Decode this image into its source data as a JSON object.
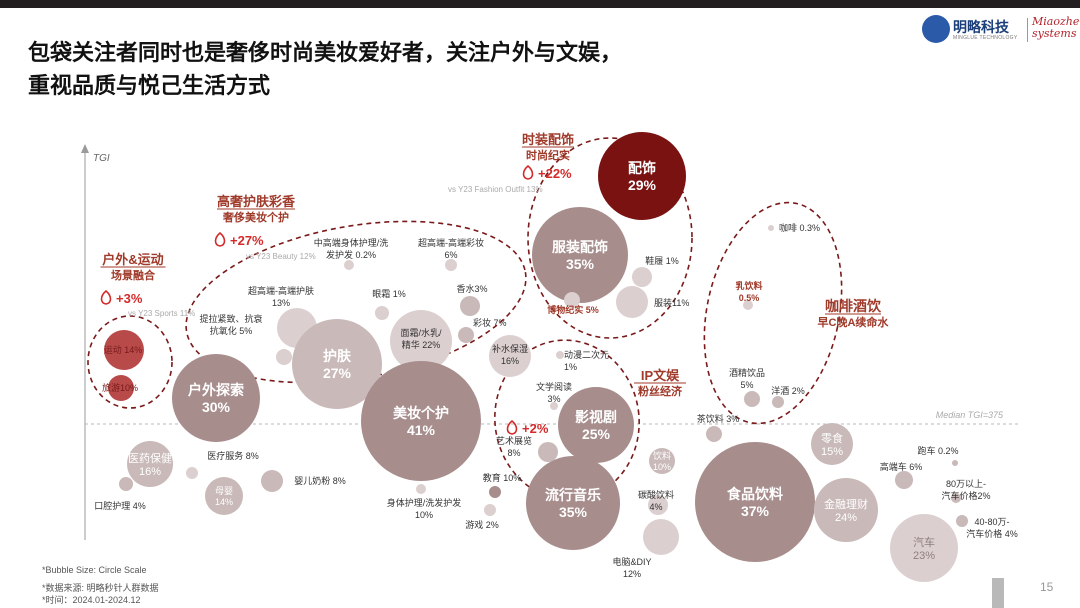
{
  "page": {
    "title_line1": "包袋关注者同时也是奢侈时尚美妆爱好者，关注户外与文娱，",
    "title_line2": "重视品质与悦己生活方式",
    "logo_text": "明略科技",
    "logo_sub": "MINGLUE TECHNOLOGY",
    "logo_brand_line1": "Miaozhen",
    "logo_brand_line2": "systems",
    "footnote_bubble": "*Bubble Size: Circle Scale",
    "footnote_source": "*数据来源: 明略秒针人群数据",
    "footnote_time": "*时间：2024.01-2024.12",
    "page_number": "15"
  },
  "chart_data": {
    "type": "scatter",
    "ylabel": "TGI",
    "median_label": "Median TGI=375",
    "colors": {
      "dark_red": "#7a1212",
      "mid_red": "#b84a4a",
      "pink_red": "#c86b6b",
      "grey_red": "#a88d8d",
      "light_grey": "#c9b9b9",
      "very_light": "#dccfcf",
      "accent_text": "#a03a2a",
      "fire_red": "#d42a2a",
      "dashed": "#7a1a1a"
    },
    "bubbles": [
      {
        "label": "配饰",
        "value": "29%",
        "tone": "dark_red"
      },
      {
        "label": "服装配饰",
        "value": "35%",
        "tone": "grey_red"
      },
      {
        "label": "鞋履 1%",
        "value": "",
        "tone": "very_light"
      },
      {
        "label": "服装11%",
        "value": "",
        "tone": "very_light"
      },
      {
        "label": "博物纪实 5%",
        "value": "",
        "tone": "very_light"
      },
      {
        "label": "咖啡 0.3%",
        "value": "",
        "tone": "very_light"
      },
      {
        "label": "乳饮料",
        "value": "0.5%",
        "tone": "very_light"
      },
      {
        "label": "酒精饮品",
        "value": "5%",
        "tone": "light_grey"
      },
      {
        "label": "洋酒 2%",
        "value": "",
        "tone": "light_grey"
      },
      {
        "label": "中高端身体护理/洗",
        "value": "发护发 0.2%",
        "tone": "very_light"
      },
      {
        "label": "超高端-高端彩妆",
        "value": "6%",
        "tone": "very_light"
      },
      {
        "label": "超高端-高端护肤",
        "value": "13%",
        "tone": "very_light"
      },
      {
        "label": "眼霜 1%",
        "value": "",
        "tone": "very_light"
      },
      {
        "label": "香水3%",
        "value": "",
        "tone": "light_grey"
      },
      {
        "label": "彩妆 7%",
        "value": "",
        "tone": "light_grey"
      },
      {
        "label": "提拉紧致、抗衰",
        "value": "抗氧化 5%",
        "tone": "very_light"
      },
      {
        "label": "面霜/水乳/",
        "value": "精华 22%",
        "tone": "very_light"
      },
      {
        "label": "补水保湿",
        "value": "16%",
        "tone": "very_light"
      },
      {
        "label": "护肤",
        "value": "27%",
        "tone": "light_grey"
      },
      {
        "label": "运动 14%",
        "value": "",
        "tone": "mid_red"
      },
      {
        "label": "旅游",
        "value": "10%",
        "tone": "mid_red"
      },
      {
        "label": "户外探索",
        "value": "30%",
        "tone": "grey_red"
      },
      {
        "label": "美妆个护",
        "value": "41%",
        "tone": "grey_red"
      },
      {
        "label": "动漫二次元",
        "value": "1%",
        "tone": "very_light"
      },
      {
        "label": "文学阅读",
        "value": "3%",
        "tone": "very_light"
      },
      {
        "label": "影视剧",
        "value": "25%",
        "tone": "grey_red"
      },
      {
        "label": "艺术展览",
        "value": "8%",
        "tone": "light_grey"
      },
      {
        "label": "茶饮料 3%",
        "value": "",
        "tone": "light_grey"
      },
      {
        "label": "医药保健",
        "value": "16%",
        "tone": "light_grey"
      },
      {
        "label": "医疗服务 8%",
        "value": "",
        "tone": "very_light"
      },
      {
        "label": "母婴",
        "value": "14%",
        "tone": "light_grey"
      },
      {
        "label": "婴儿奶粉 8%",
        "value": "",
        "tone": "light_grey"
      },
      {
        "label": "口腔护理 4%",
        "value": "",
        "tone": "light_grey"
      },
      {
        "label": "身体护理/洗发护发",
        "value": "10%",
        "tone": "very_light"
      },
      {
        "label": "教育 10%",
        "value": "",
        "tone": "grey_red"
      },
      {
        "label": "游戏 2%",
        "value": "",
        "tone": "very_light"
      },
      {
        "label": "流行音乐",
        "value": "35%",
        "tone": "grey_red"
      },
      {
        "label": "饮料",
        "value": "10%",
        "tone": "light_grey"
      },
      {
        "label": "碳酸饮料",
        "value": "4%",
        "tone": "very_light"
      },
      {
        "label": "电脑&DIY",
        "value": "12%",
        "tone": "very_light"
      },
      {
        "label": "食品饮料",
        "value": "37%",
        "tone": "grey_red"
      },
      {
        "label": "零食",
        "value": "15%",
        "tone": "light_grey"
      },
      {
        "label": "金融理财",
        "value": "24%",
        "tone": "light_grey"
      },
      {
        "label": "高端车 6%",
        "value": "",
        "tone": "light_grey"
      },
      {
        "label": "跑车 0.2%",
        "value": "",
        "tone": "light_grey"
      },
      {
        "label": "80万以上-",
        "value": "汽车价格2%",
        "tone": "light_grey"
      },
      {
        "label": "40-80万-",
        "value": "汽车价格 4%",
        "tone": "light_grey"
      },
      {
        "label": "汽车",
        "value": "23%",
        "tone": "very_light"
      }
    ],
    "callouts": [
      {
        "title": "时装配饰",
        "subtitle": "时尚纪实",
        "uplift": "+22%",
        "compare": "vs Y23 Fashion Outfit 13%"
      },
      {
        "title": "高奢护肤彩香",
        "subtitle": "奢侈美妆个护",
        "uplift": "+27%",
        "compare": "vs Y23 Beauty 12%"
      },
      {
        "title": "户外&运动",
        "subtitle": "场景融合",
        "uplift": "+3%",
        "compare": "vs Y23 Sports 11%"
      },
      {
        "title": "IP文娱",
        "subtitle": "粉丝经济",
        "uplift": "+2%",
        "compare": ""
      },
      {
        "title": "咖啡酒饮",
        "subtitle": "早C晚A续命水",
        "uplift": "",
        "compare": ""
      }
    ]
  }
}
